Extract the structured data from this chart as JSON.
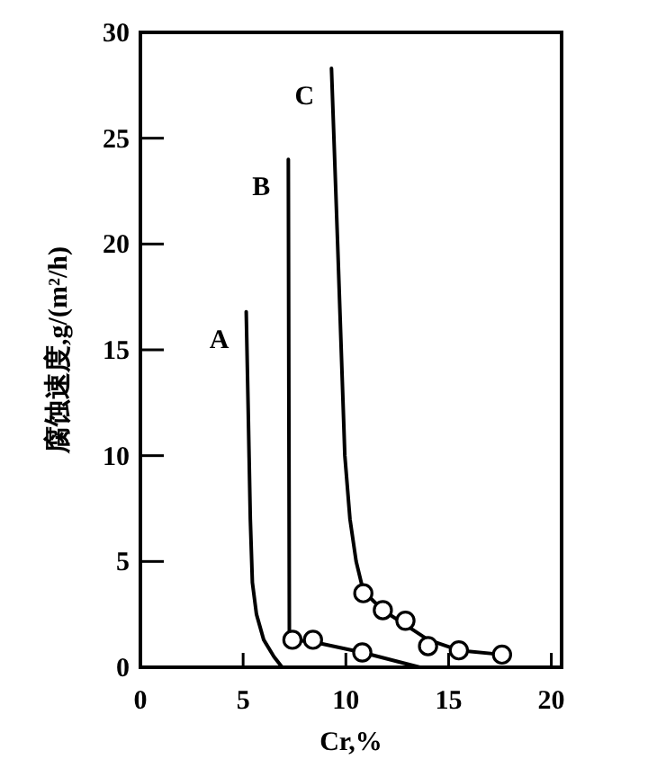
{
  "chart_data": {
    "type": "line",
    "xlabel": "Cr,%",
    "ylabel": "腐蚀速度,g/(m²/h)",
    "xlim": [
      0,
      20.5
    ],
    "xticks": [
      0,
      5,
      10,
      15,
      20
    ],
    "ylim": [
      0,
      30
    ],
    "yticks": [
      0,
      5,
      10,
      15,
      20,
      25,
      30
    ],
    "series": [
      {
        "name": "A",
        "type": "line",
        "color": "#000000",
        "marker": "none",
        "x": [
          5.15,
          5.25,
          5.35,
          5.45,
          5.65,
          6.0,
          6.5,
          6.9
        ],
        "values": [
          16.8,
          12,
          7,
          4,
          2.5,
          1.3,
          0.5,
          0
        ]
      },
      {
        "name": "B",
        "type": "line",
        "color": "#000000",
        "marker": "none",
        "x": [
          7.2,
          7.25,
          7.4,
          8.4,
          10.8,
          13.6
        ],
        "values": [
          24,
          1.6,
          1.3,
          1.2,
          0.7,
          0
        ]
      },
      {
        "type": "scatter",
        "color": "#000000",
        "marker": "circle",
        "x": [
          7.4,
          8.4,
          10.8
        ],
        "values": [
          1.3,
          1.3,
          0.7
        ]
      },
      {
        "name": "C",
        "type": "line",
        "color": "#000000",
        "marker": "none",
        "x": [
          9.3,
          9.6,
          9.95,
          10.2,
          10.5,
          10.85,
          11.8,
          12.9,
          14,
          15.5,
          17.6
        ],
        "values": [
          28.3,
          20,
          10,
          7,
          5,
          3.6,
          2.7,
          2.0,
          1.3,
          0.8,
          0.6
        ]
      },
      {
        "type": "scatter",
        "color": "#000000",
        "marker": "circle",
        "x": [
          10.85,
          11.8,
          12.9,
          14,
          15.5,
          17.6
        ],
        "values": [
          3.5,
          2.7,
          2.2,
          1.0,
          0.8,
          0.6
        ]
      }
    ]
  }
}
